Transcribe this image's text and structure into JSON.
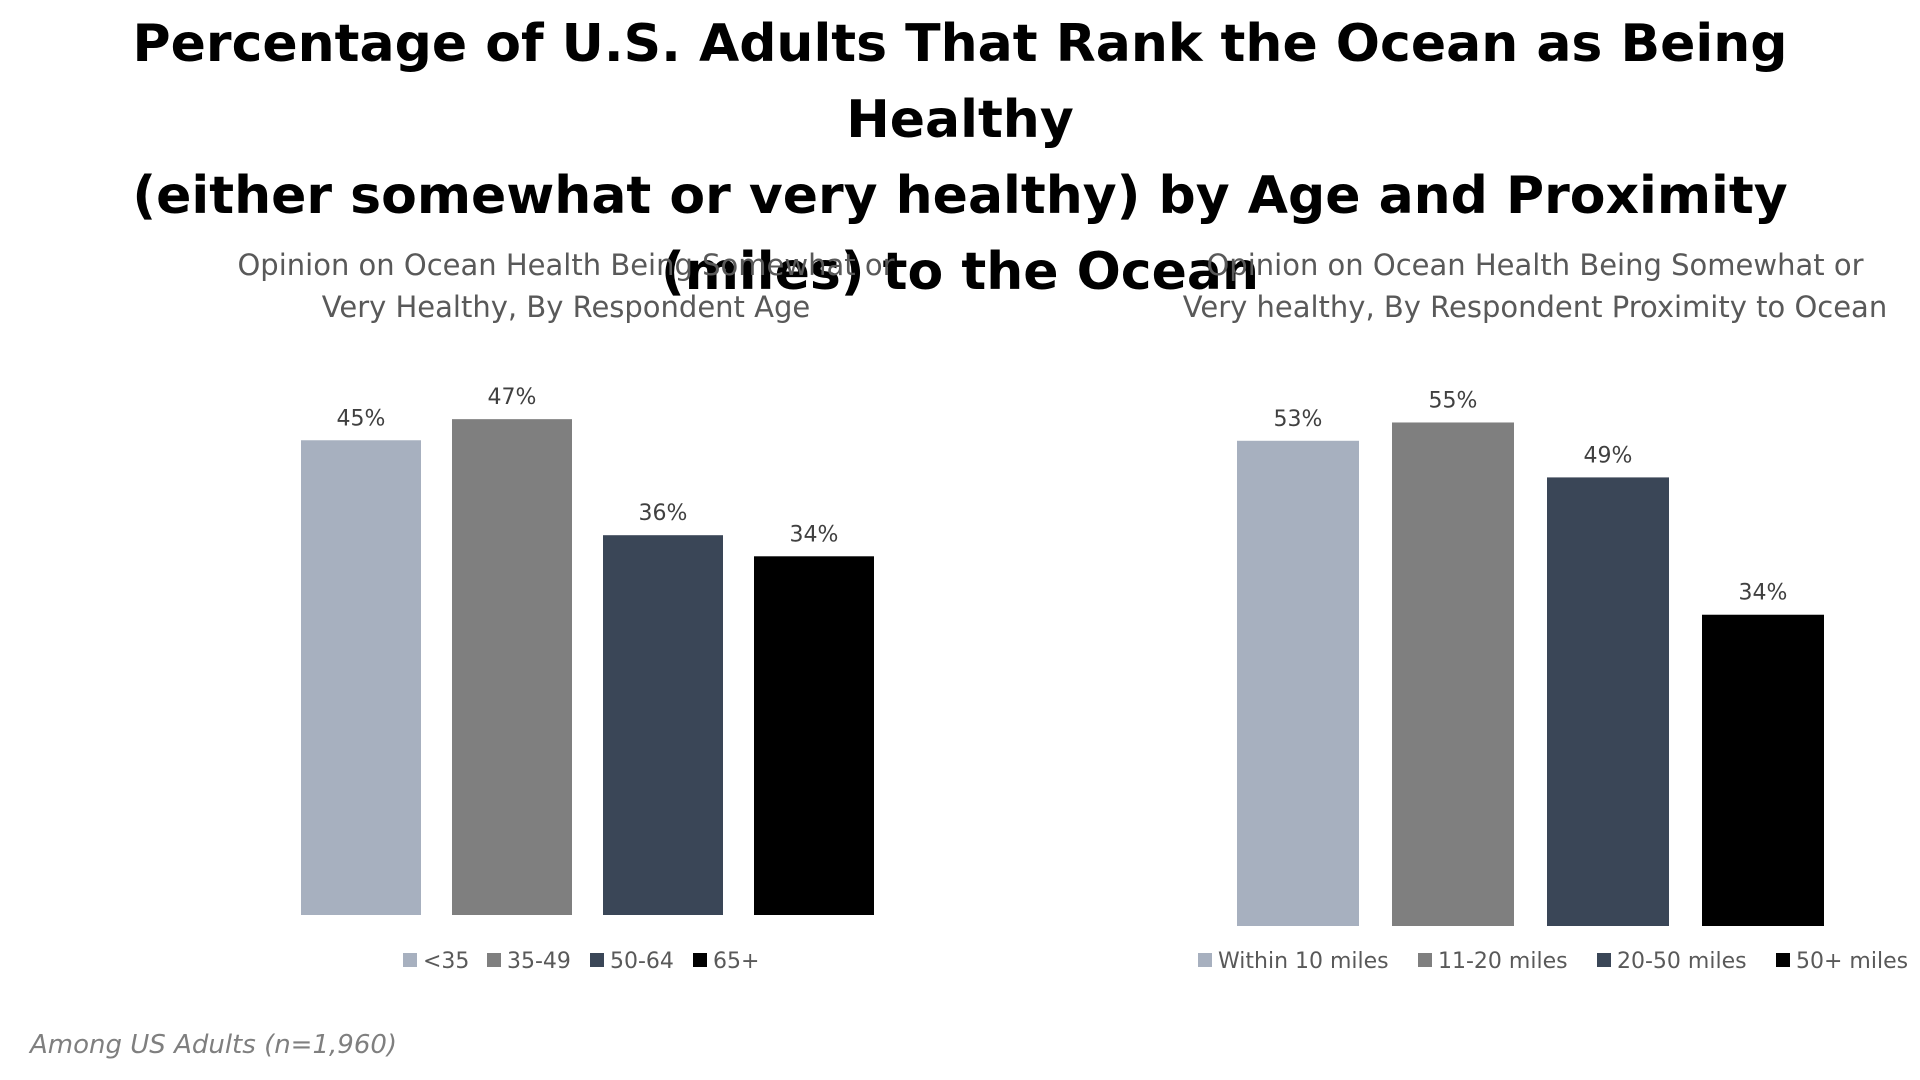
{
  "title_lines": [
    "Percentage of U.S. Adults That Rank the Ocean as Being Healthy",
    "(either somewhat or very healthy) by Age and Proximity",
    "(miles) to the Ocean"
  ],
  "footnote": "Among US Adults (n=1,960)",
  "chart_data": [
    {
      "type": "bar",
      "title_lines": [
        "Opinion on Ocean Health Being Somewhat or",
        "Very Healthy, By Respondent  Age"
      ],
      "categories": [
        "<35",
        "35-49",
        "50-64",
        "65+"
      ],
      "values": [
        45,
        47,
        36,
        34
      ],
      "value_labels": [
        "45%",
        "47%",
        "36%",
        "34%"
      ],
      "colors": [
        "#a7b0bf",
        "#7f7f7f",
        "#3a4657",
        "#000000"
      ],
      "legend_position": "bottom",
      "grid": false
    },
    {
      "type": "bar",
      "title_lines": [
        "Opinion on Ocean Health Being Somewhat or",
        "Very healthy, By Respondent  Proximity to Ocean"
      ],
      "categories": [
        "Within 10 miles",
        "11-20 miles",
        "20-50 miles",
        "50+ miles"
      ],
      "values": [
        53,
        55,
        49,
        34
      ],
      "value_labels": [
        "53%",
        "55%",
        "49%",
        "34%"
      ],
      "colors": [
        "#a7b0bf",
        "#7f7f7f",
        "#3a4657",
        "#000000"
      ],
      "legend_position": "bottom",
      "grid": false
    }
  ]
}
